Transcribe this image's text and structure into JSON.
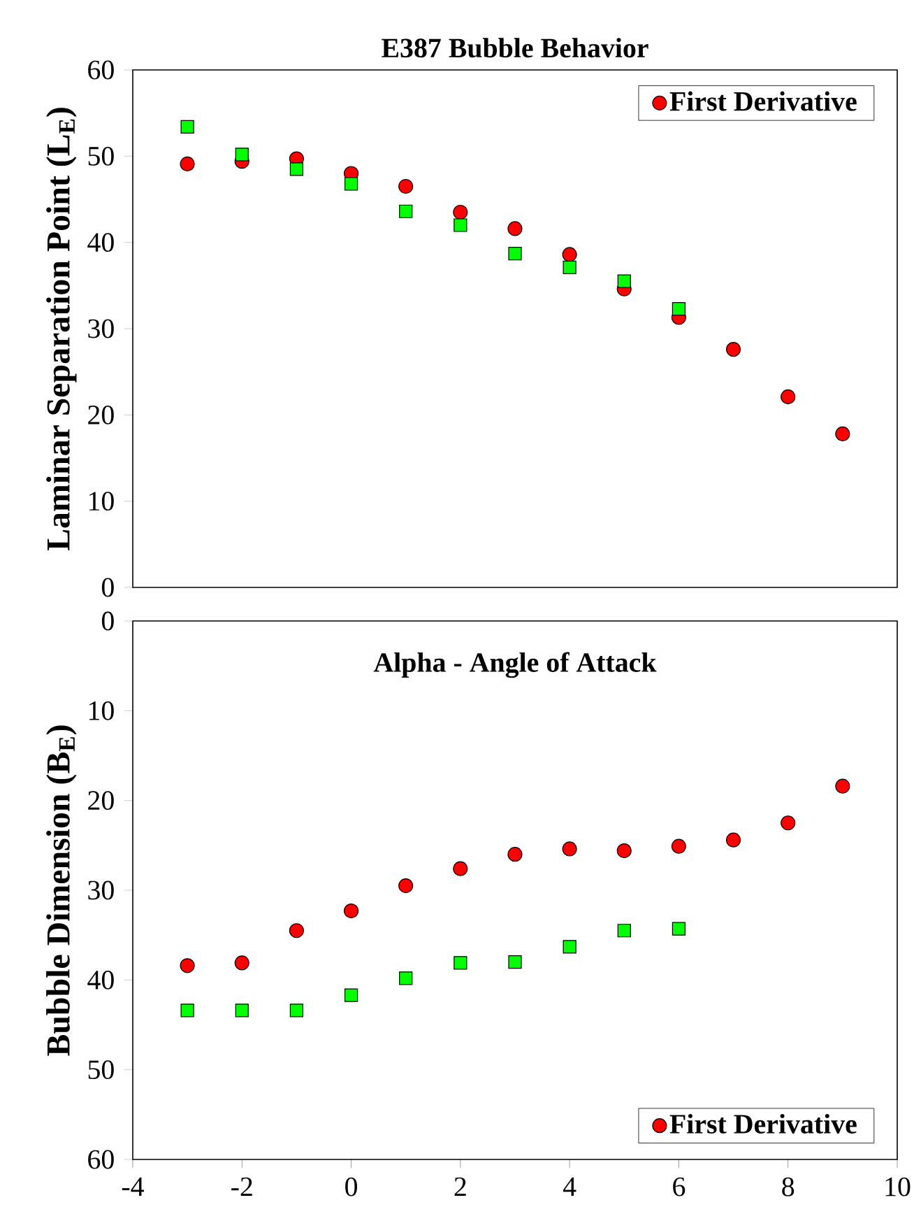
{
  "chart_data": [
    {
      "type": "scatter",
      "title": "E387 Bubble Behavior",
      "ylabel": "Laminar Separation Point (L$_{E}$)",
      "xlim": [
        -4,
        10
      ],
      "ylim": [
        0,
        60
      ],
      "yticks": [
        0,
        10,
        20,
        30,
        40,
        50,
        60
      ],
      "tick_labels": "y",
      "legend": "top right",
      "grid": false,
      "series": [
        {
          "name": "First Derivative",
          "color": "#ff0000",
          "marker": "circle",
          "x": [
            -3,
            -2,
            -1,
            0,
            1,
            2,
            3,
            4,
            5,
            6,
            7,
            8,
            9
          ],
          "values": [
            49.1,
            49.4,
            49.7,
            48.0,
            46.5,
            43.5,
            41.6,
            38.6,
            34.6,
            31.3,
            27.6,
            22.1,
            17.8
          ]
        },
        {
          "color": "#00ff00",
          "marker": "square",
          "x": [
            -3,
            -2,
            -1,
            0,
            1,
            2,
            3,
            4,
            5,
            6
          ],
          "values": [
            53.4,
            50.2,
            48.5,
            46.8,
            43.6,
            42.0,
            38.7,
            37.1,
            35.5,
            32.3
          ]
        }
      ]
    },
    {
      "type": "scatter",
      "xlabel": "Alpha - Angle of Attack",
      "ylabel": "Bubble Dimension (B$_{E}$)",
      "xlim": [
        -4,
        10
      ],
      "xticks": [
        -4,
        -2,
        0,
        2,
        4,
        6,
        8,
        10
      ],
      "ylim": [
        60,
        0
      ],
      "yticks": [
        0,
        10,
        20,
        30,
        40,
        50,
        60
      ],
      "legend": "bottom right",
      "grid": false,
      "series": [
        {
          "name": "First Derivative",
          "color": "#ff0000",
          "marker": "circle",
          "x": [
            -3,
            -2,
            -1,
            0,
            1,
            2,
            3,
            4,
            5,
            6,
            7,
            8,
            9
          ],
          "values": [
            38.4,
            38.1,
            34.5,
            32.3,
            29.5,
            27.6,
            26.0,
            25.4,
            25.6,
            25.1,
            24.4,
            22.5,
            18.4
          ]
        },
        {
          "color": "#00ff00",
          "marker": "square",
          "x": [
            -3,
            -2,
            -1,
            0,
            1,
            2,
            3,
            4,
            5,
            6
          ],
          "values": [
            43.4,
            43.4,
            43.4,
            41.7,
            39.8,
            38.1,
            38.0,
            36.3,
            34.5,
            34.3
          ]
        }
      ]
    }
  ]
}
